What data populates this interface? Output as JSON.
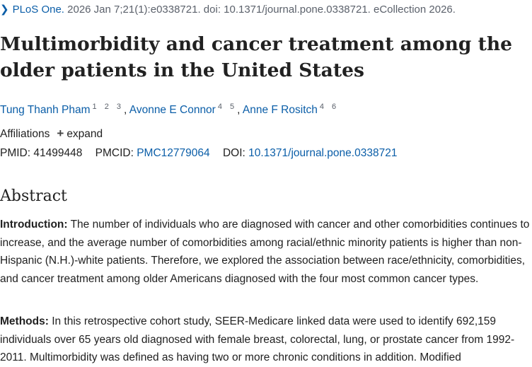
{
  "citation": {
    "journal": "PLoS One.",
    "details": "2026 Jan 7;21(1):e0338721. doi: 10.1371/journal.pone.0338721. eCollection 2026."
  },
  "title": "Multimorbidity and cancer treatment among the older patients in the United States",
  "authors": [
    {
      "name": "Tung Thanh Pham",
      "affiliations": "1 2 3"
    },
    {
      "name": "Avonne E Connor",
      "affiliations": "4 5"
    },
    {
      "name": "Anne F Rositch",
      "affiliations": "4 6"
    }
  ],
  "affiliations": {
    "label": "Affiliations",
    "expand_label": "expand"
  },
  "identifiers": {
    "pmid_label": "PMID:",
    "pmid": "41499448",
    "pmcid_label": "PMCID:",
    "pmcid": "PMC12779064",
    "doi_label": "DOI:",
    "doi": "10.1371/journal.pone.0338721"
  },
  "abstract": {
    "heading": "Abstract",
    "introduction_label": "Introduction:",
    "introduction_text": " The number of individuals who are diagnosed with cancer and other comorbidities continues to increase, and the average number of comorbidities among racial/ethnic minority patients is higher than non-Hispanic (N.H.)-white patients. Therefore, we explored the association between race/ethnicity, comorbidities, and cancer treatment among older Americans diagnosed with the four most common cancer types.",
    "methods_label": "Methods:",
    "methods_text": " In this retrospective cohort study, SEER-Medicare linked data were used to identify 692,159 individuals over 65 years old diagnosed with female breast, colorectal, lung, or prostate cancer from 1992-2011. Multimorbidity was defined as having two or more chronic conditions in addition. Modified"
  }
}
